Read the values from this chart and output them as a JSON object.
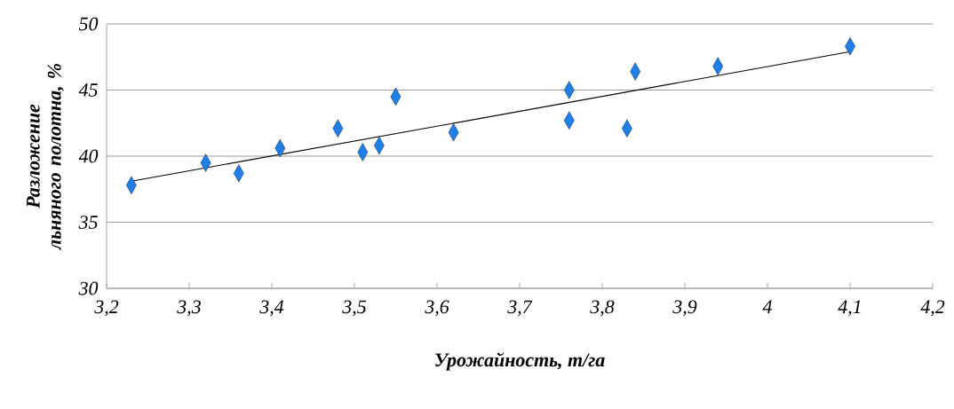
{
  "chart_data": {
    "type": "scatter",
    "xlabel": "Урожайность, т/га",
    "ylabel": "Разложение льняного полотна, %",
    "xlim": [
      3.2,
      4.2
    ],
    "ylim": [
      30,
      50
    ],
    "xticks": [
      {
        "value": 3.2,
        "label": "3,2"
      },
      {
        "value": 3.3,
        "label": "3,3"
      },
      {
        "value": 3.4,
        "label": "3,4"
      },
      {
        "value": 3.5,
        "label": "3,5"
      },
      {
        "value": 3.6,
        "label": "3,6"
      },
      {
        "value": 3.7,
        "label": "3,7"
      },
      {
        "value": 3.8,
        "label": "3,8"
      },
      {
        "value": 3.9,
        "label": "3,9"
      },
      {
        "value": 4,
        "label": "4"
      },
      {
        "value": 4.1,
        "label": "4,1"
      },
      {
        "value": 4.2,
        "label": "4,2"
      }
    ],
    "yticks": [
      30,
      35,
      40,
      45,
      50
    ],
    "grid": "y",
    "series": [
      {
        "color": "#1f7fe8",
        "marker": "diamond",
        "x": [
          3.23,
          3.32,
          3.36,
          3.41,
          3.48,
          3.51,
          3.53,
          3.55,
          3.62,
          3.76,
          3.76,
          3.83,
          3.84,
          3.94,
          4.1
        ],
        "values": [
          37.8,
          39.5,
          38.7,
          40.6,
          42.1,
          40.3,
          40.8,
          44.5,
          41.8,
          45.0,
          42.7,
          42.1,
          46.4,
          46.8,
          48.3
        ]
      },
      {
        "type": "line",
        "color": "#000000",
        "marker": "none",
        "x": [
          3.23,
          4.1
        ],
        "values": [
          38.1,
          47.9
        ]
      }
    ]
  }
}
